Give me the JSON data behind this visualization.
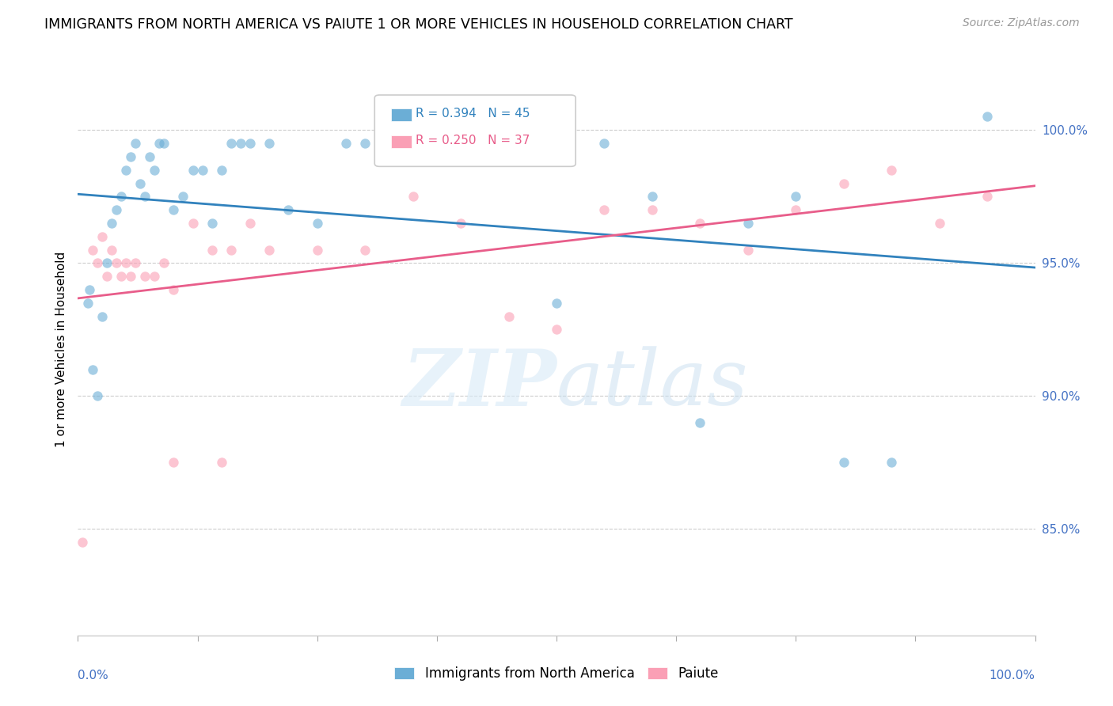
{
  "title": "IMMIGRANTS FROM NORTH AMERICA VS PAIUTE 1 OR MORE VEHICLES IN HOUSEHOLD CORRELATION CHART",
  "source": "Source: ZipAtlas.com",
  "ylabel": "1 or more Vehicles in Household",
  "xlim": [
    0.0,
    100.0
  ],
  "ylim": [
    81.0,
    102.5
  ],
  "y_ticks": [
    85.0,
    90.0,
    95.0,
    100.0
  ],
  "y_tick_labels": [
    "85.0%",
    "90.0%",
    "95.0%",
    "100.0%"
  ],
  "x_ticks": [
    0.0,
    12.5,
    25.0,
    37.5,
    50.0,
    62.5,
    75.0,
    87.5,
    100.0
  ],
  "blue_R": 0.394,
  "blue_N": 45,
  "pink_R": 0.25,
  "pink_N": 37,
  "blue_color": "#6baed6",
  "pink_color": "#fa9fb5",
  "blue_line_color": "#3182bd",
  "pink_line_color": "#e85d8a",
  "legend_label_blue": "Immigrants from North America",
  "legend_label_pink": "Paiute",
  "watermark_zip": "ZIP",
  "watermark_atlas": "atlas",
  "blue_scatter_x": [
    1.0,
    1.2,
    1.5,
    2.0,
    2.5,
    3.0,
    3.5,
    4.0,
    4.5,
    5.0,
    5.5,
    6.0,
    6.5,
    7.0,
    7.5,
    8.0,
    8.5,
    9.0,
    10.0,
    11.0,
    12.0,
    13.0,
    14.0,
    15.0,
    16.0,
    17.0,
    18.0,
    20.0,
    22.0,
    25.0,
    28.0,
    30.0,
    33.0,
    36.0,
    40.0,
    45.0,
    50.0,
    55.0,
    60.0,
    65.0,
    70.0,
    75.0,
    80.0,
    85.0,
    95.0
  ],
  "blue_scatter_y": [
    93.5,
    94.0,
    91.0,
    90.0,
    93.0,
    95.0,
    96.5,
    97.0,
    97.5,
    98.5,
    99.0,
    99.5,
    98.0,
    97.5,
    99.0,
    98.5,
    99.5,
    99.5,
    97.0,
    97.5,
    98.5,
    98.5,
    96.5,
    98.5,
    99.5,
    99.5,
    99.5,
    99.5,
    97.0,
    96.5,
    99.5,
    99.5,
    99.5,
    99.5,
    99.5,
    99.5,
    93.5,
    99.5,
    97.5,
    89.0,
    96.5,
    97.5,
    87.5,
    87.5,
    100.5
  ],
  "pink_scatter_x": [
    0.5,
    1.5,
    2.0,
    2.5,
    3.0,
    3.5,
    4.0,
    4.5,
    5.0,
    5.5,
    6.0,
    7.0,
    8.0,
    9.0,
    10.0,
    12.0,
    14.0,
    16.0,
    18.0,
    20.0,
    25.0,
    30.0,
    35.0,
    40.0,
    45.0,
    50.0,
    55.0,
    60.0,
    65.0,
    70.0,
    75.0,
    80.0,
    85.0,
    90.0,
    95.0,
    10.0,
    15.0
  ],
  "pink_scatter_y": [
    84.5,
    95.5,
    95.0,
    96.0,
    94.5,
    95.5,
    95.0,
    94.5,
    95.0,
    94.5,
    95.0,
    94.5,
    94.5,
    95.0,
    87.5,
    96.5,
    95.5,
    95.5,
    96.5,
    95.5,
    95.5,
    95.5,
    97.5,
    96.5,
    93.0,
    92.5,
    97.0,
    97.0,
    96.5,
    95.5,
    97.0,
    98.0,
    98.5,
    96.5,
    97.5,
    94.0,
    87.5
  ]
}
